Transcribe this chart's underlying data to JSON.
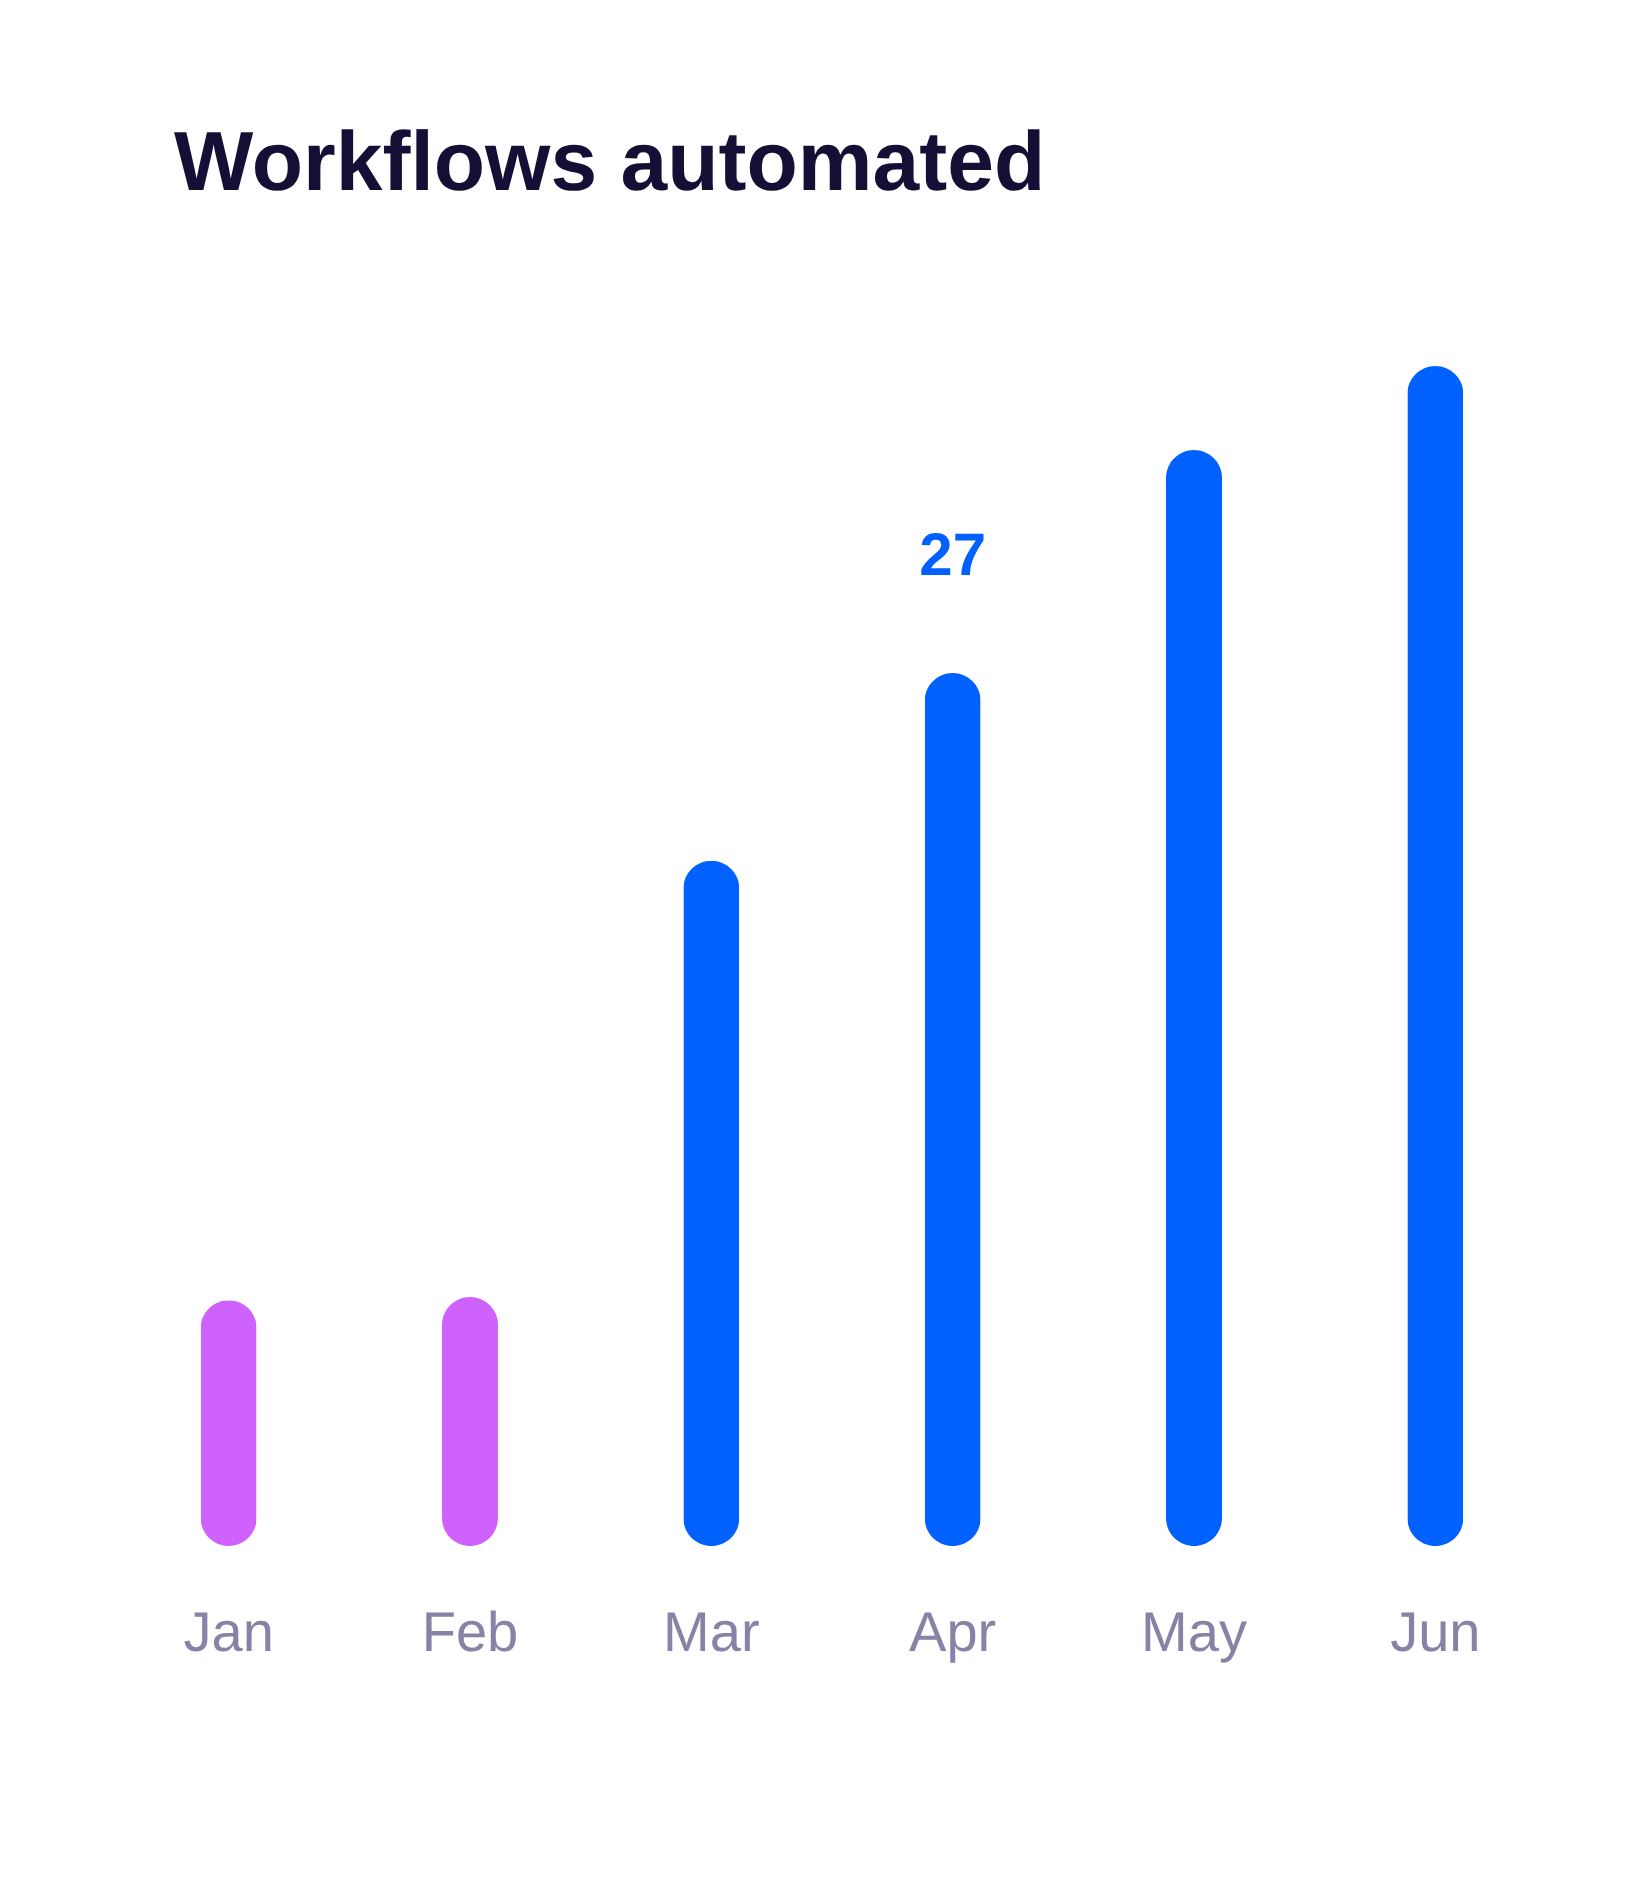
{
  "chart_data": {
    "type": "bar",
    "title": "Workflows automated",
    "categories": [
      "Jan",
      "Feb",
      "Mar",
      "Apr",
      "May",
      "Jun"
    ],
    "values": [
      7.6,
      7.7,
      21.2,
      27,
      33.9,
      36.5
    ],
    "colors": [
      "#cf62fc",
      "#cf62fc",
      "#0061fe",
      "#0061fe",
      "#0061fe",
      "#0061fe"
    ],
    "value_labels": [
      null,
      null,
      null,
      "27",
      null,
      null
    ],
    "tick_labels": "x"
  }
}
